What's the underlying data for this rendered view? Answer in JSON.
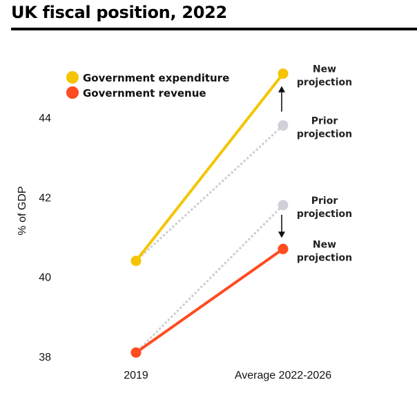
{
  "title": "UK fiscal position, 2022",
  "chart_data": {
    "type": "line",
    "categories": [
      "2019",
      "Average 2022-2026"
    ],
    "ylabel": "% of GDP",
    "xlabel": "",
    "ylim": [
      37.8,
      46.3
    ],
    "yticks": [
      38,
      40,
      42,
      44
    ],
    "ytick_labels": [
      "38",
      "40",
      "42",
      "44"
    ],
    "grid": false,
    "legend_position": "top-left",
    "series": [
      {
        "name": "Government expenditure",
        "kind": "new",
        "values": [
          40.4,
          45.1
        ],
        "color": "#f5c400"
      },
      {
        "name": "",
        "kind": "prior",
        "values": [
          40.4,
          43.8
        ],
        "color": "#cfd0d8"
      },
      {
        "name": "",
        "kind": "prior",
        "values": [
          38.1,
          41.8
        ],
        "color": "#cfd0d8"
      },
      {
        "name": "Government revenue",
        "kind": "new",
        "values": [
          38.1,
          40.7
        ],
        "color": "#ff4b1f"
      }
    ],
    "annotations": [
      {
        "line1": "New",
        "line2": "projection",
        "y": 45.1,
        "color": "#222222"
      },
      {
        "line1": "Prior",
        "line2": "projection",
        "y": 43.8,
        "color": "#222222"
      },
      {
        "line1": "Prior",
        "line2": "projection",
        "y": 41.8,
        "color": "#222222"
      },
      {
        "line1": "New",
        "line2": "projection",
        "y": 40.7,
        "color": "#222222"
      }
    ],
    "arrows": [
      {
        "from": 43.8,
        "to": 45.1
      },
      {
        "from": 41.8,
        "to": 40.7
      }
    ]
  }
}
